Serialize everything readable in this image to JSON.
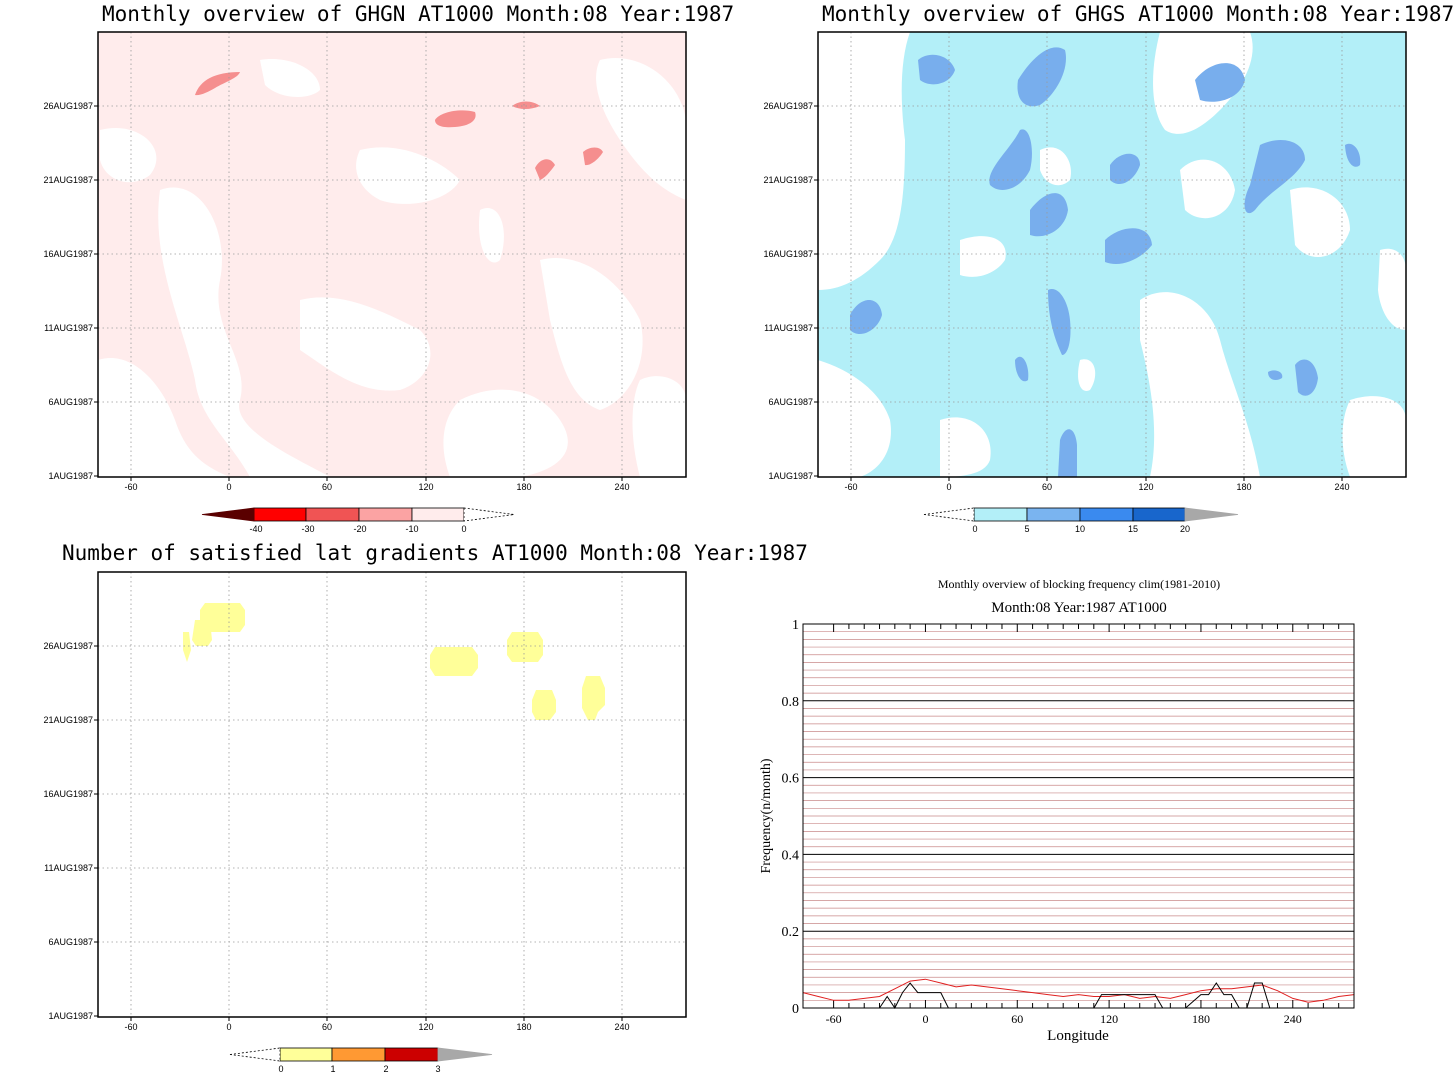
{
  "panels": [
    {
      "id": "ghgn",
      "title": "Monthly overview of GHGN AT1000 Month:08 Year:1987",
      "yticks": [
        "26AUG1987",
        "21AUG1987",
        "16AUG1987",
        "11AUG1987",
        "6AUG1987",
        "1AUG1987"
      ],
      "xticks": [
        "-60",
        "0",
        "60",
        "120",
        "180",
        "240"
      ],
      "colorbar": {
        "labels": [
          "-40",
          "-30",
          "-20",
          "-10",
          "0"
        ],
        "colors": [
          "#5a0000",
          "#ff0000",
          "#f05454",
          "#fba3a3",
          "#ffecec"
        ]
      },
      "fill_color": "#ffecec",
      "spot_color": "#f58e8e"
    },
    {
      "id": "ghgs",
      "title": "Monthly overview of GHGS AT1000 Month:08 Year:1987",
      "yticks": [
        "26AUG1987",
        "21AUG1987",
        "16AUG1987",
        "11AUG1987",
        "6AUG1987",
        "1AUG1987"
      ],
      "xticks": [
        "-60",
        "0",
        "60",
        "120",
        "180",
        "240"
      ],
      "colorbar": {
        "labels": [
          "0",
          "5",
          "10",
          "15",
          "20"
        ],
        "colors": [
          "#b3eff8",
          "#7ab4f0",
          "#3a8aef",
          "#1866cc",
          "#a8a8a8"
        ]
      },
      "fill_color": "#b3eff8",
      "spot_color": "#78aeed"
    },
    {
      "id": "latgrad",
      "title": "Number of satisfied lat gradients AT1000 Month:08 Year:1987",
      "yticks": [
        "26AUG1987",
        "21AUG1987",
        "16AUG1987",
        "11AUG1987",
        "6AUG1987",
        "1AUG1987"
      ],
      "xticks": [
        "-60",
        "0",
        "60",
        "120",
        "180",
        "240"
      ],
      "colorbar": {
        "labels": [
          "0",
          "1",
          "2",
          "3"
        ],
        "colors": [
          "#ffff99",
          "#ff9933",
          "#cc0000",
          "#a8a8a8"
        ]
      },
      "spot_color": "#ffff99"
    }
  ],
  "chart_data": [
    {
      "type": "heatmap",
      "title": "Monthly overview of GHGN AT1000 Month:08 Year:1987",
      "x_ticks": [
        -60,
        0,
        60,
        120,
        180,
        240
      ],
      "y_ticks": [
        "1AUG1987",
        "6AUG1987",
        "11AUG1987",
        "16AUG1987",
        "21AUG1987",
        "26AUG1987"
      ],
      "levels": [
        -40,
        -30,
        -20,
        -10,
        0
      ]
    },
    {
      "type": "heatmap",
      "title": "Monthly overview of GHGS AT1000 Month:08 Year:1987",
      "x_ticks": [
        -60,
        0,
        60,
        120,
        180,
        240
      ],
      "y_ticks": [
        "1AUG1987",
        "6AUG1987",
        "11AUG1987",
        "16AUG1987",
        "21AUG1987",
        "26AUG1987"
      ],
      "levels": [
        0,
        5,
        10,
        15,
        20
      ]
    },
    {
      "type": "heatmap",
      "title": "Number of satisfied lat gradients AT1000 Month:08 Year:1987",
      "x_ticks": [
        -60,
        0,
        60,
        120,
        180,
        240
      ],
      "y_ticks": [
        "1AUG1987",
        "6AUG1987",
        "11AUG1987",
        "16AUG1987",
        "21AUG1987",
        "26AUG1987"
      ],
      "levels": [
        0,
        1,
        2,
        3
      ]
    },
    {
      "type": "line",
      "title": "Monthly overview of blocking frequency clim(1981-2010)",
      "subtitle": "Month:08 Year:1987  AT1000",
      "xlabel": "Longitude",
      "ylabel": "Frequency(n/month)",
      "xlim": [
        -80,
        280
      ],
      "ylim": [
        0,
        1
      ],
      "x_ticks": [
        -60,
        0,
        60,
        120,
        180,
        240
      ],
      "y_ticks": [
        0,
        0.2,
        0.4,
        0.6,
        0.8,
        1
      ],
      "y_tick_labels": [
        "0",
        "0.2",
        "0.4",
        "0.6",
        "0.8",
        "1"
      ],
      "series": [
        {
          "color": "#e02020",
          "x": [
            -80,
            -70,
            -60,
            -50,
            -40,
            -30,
            -20,
            -10,
            0,
            10,
            20,
            30,
            40,
            50,
            60,
            70,
            80,
            90,
            100,
            110,
            120,
            130,
            140,
            150,
            160,
            170,
            180,
            190,
            200,
            210,
            220,
            230,
            240,
            250,
            260,
            270,
            280
          ],
          "y": [
            0.04,
            0.03,
            0.02,
            0.02,
            0.025,
            0.03,
            0.05,
            0.07,
            0.075,
            0.065,
            0.055,
            0.06,
            0.055,
            0.05,
            0.045,
            0.04,
            0.035,
            0.03,
            0.035,
            0.03,
            0.03,
            0.035,
            0.025,
            0.03,
            0.025,
            0.035,
            0.045,
            0.05,
            0.05,
            0.055,
            0.06,
            0.045,
            0.025,
            0.015,
            0.02,
            0.03,
            0.035
          ]
        },
        {
          "color": "#000000",
          "x": [
            -80,
            -70,
            -60,
            -50,
            -40,
            -30,
            -25,
            -20,
            -15,
            -10,
            -5,
            0,
            5,
            10,
            15,
            20,
            30,
            40,
            50,
            60,
            70,
            80,
            90,
            100,
            110,
            115,
            120,
            130,
            140,
            150,
            155,
            160,
            170,
            180,
            185,
            190,
            195,
            200,
            205,
            210,
            215,
            220,
            225,
            230,
            240,
            250,
            260,
            270,
            280
          ],
          "y": [
            0,
            0,
            0,
            0,
            0,
            0,
            0.03,
            0,
            0.04,
            0.065,
            0.04,
            0.04,
            0.04,
            0.04,
            0,
            0,
            0,
            0,
            0,
            0,
            0,
            0,
            0,
            0,
            0,
            0.035,
            0.035,
            0.035,
            0.035,
            0.035,
            0,
            0,
            0,
            0.035,
            0.035,
            0.065,
            0.035,
            0.035,
            0,
            0,
            0.065,
            0.065,
            0,
            0,
            0,
            0,
            0,
            0,
            0
          ]
        }
      ]
    }
  ]
}
